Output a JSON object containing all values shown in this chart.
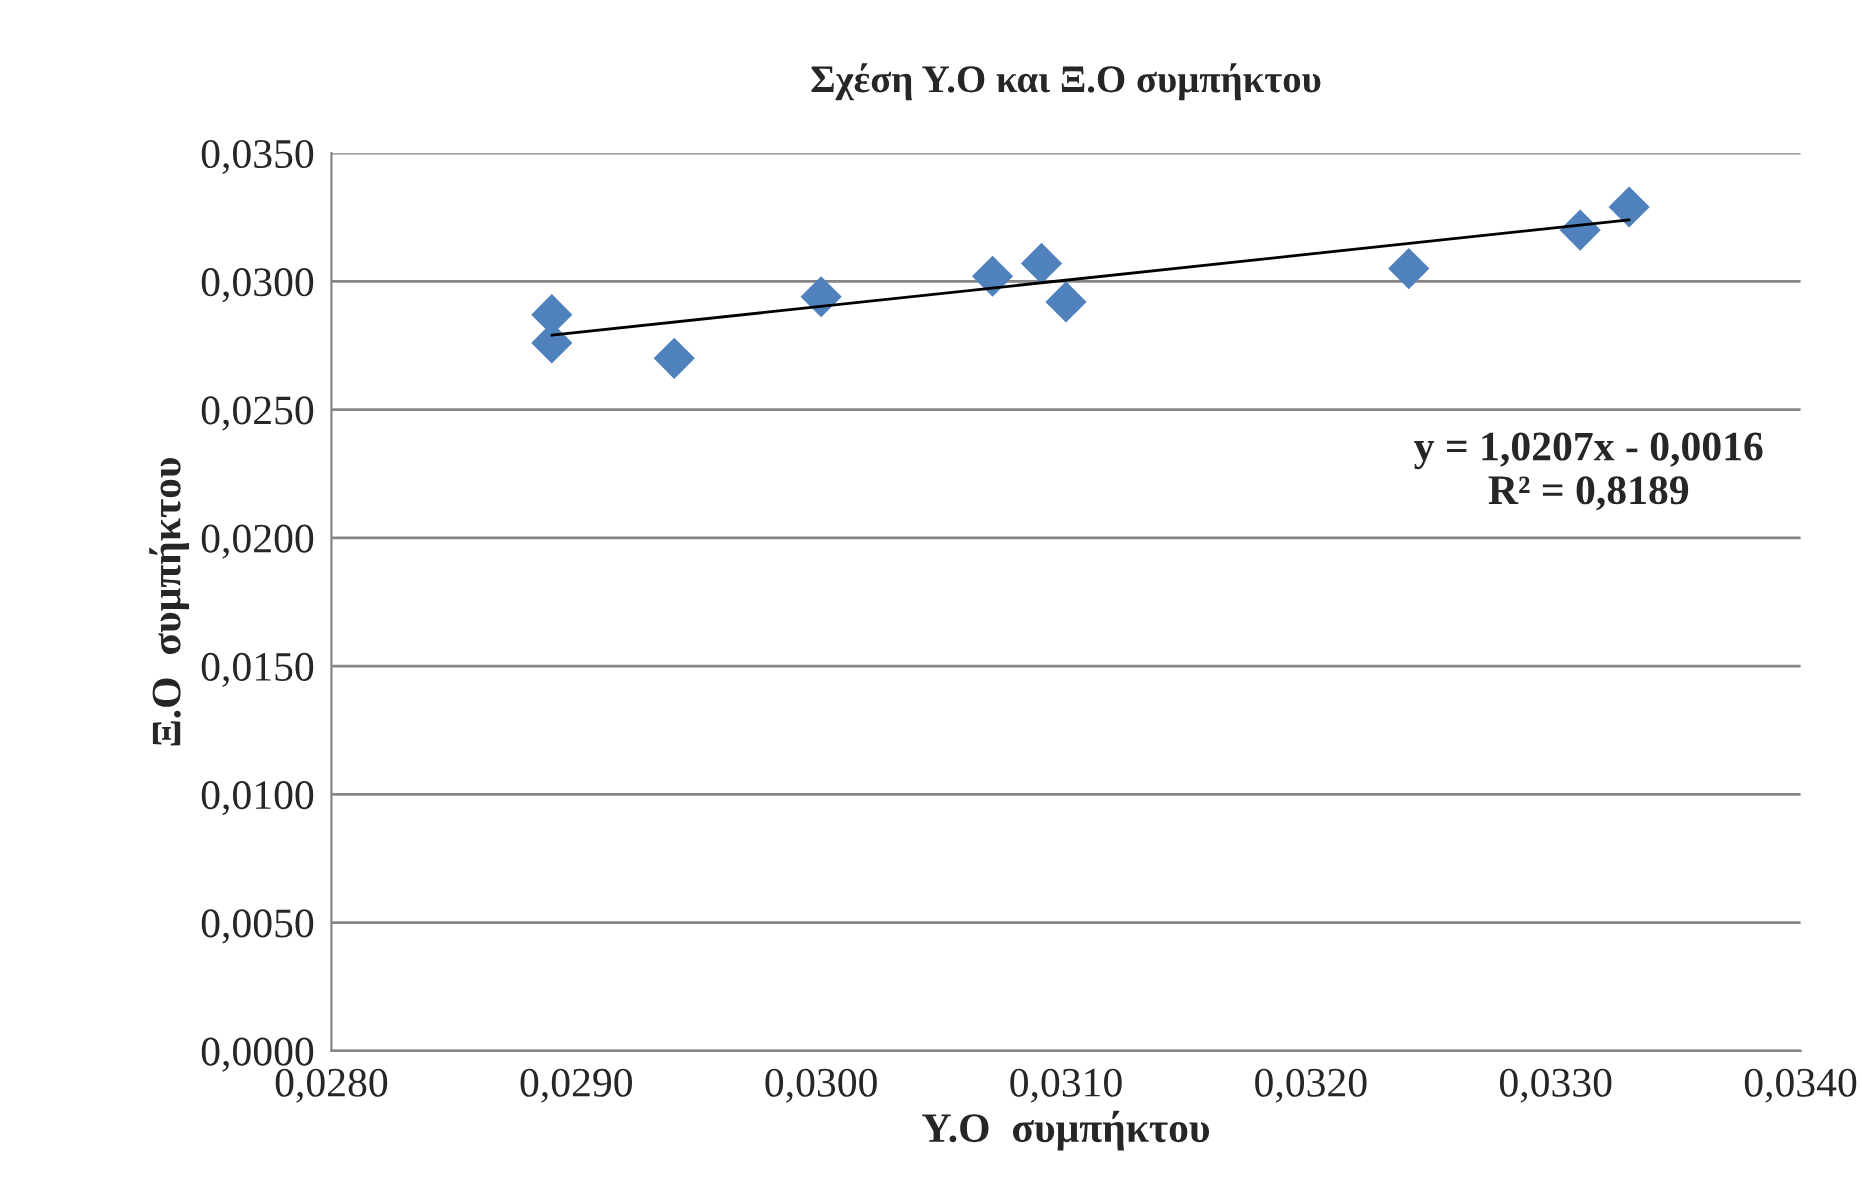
{
  "chart_data": {
    "type": "scatter",
    "title": "Σχέση Υ.Ο και Ξ.Ο συμπήκτου",
    "xlabel": "Υ.Ο  συμπήκτου",
    "ylabel": "Ξ.Ο  συμπήκτου",
    "series": [
      {
        "color": "#4f81bd",
        "marker": "diamond",
        "x": [
          0.0289,
          0.0289,
          0.0294,
          0.03,
          0.0307,
          0.0309,
          0.031,
          0.0324,
          0.0331,
          0.0333
        ],
        "values": [
          0.0287,
          0.0276,
          0.027,
          0.0294,
          0.0302,
          0.0307,
          0.0292,
          0.0305,
          0.032,
          0.0329
        ]
      },
      {
        "type": "line",
        "color": "#000000",
        "marker": "none",
        "line_style": "solid",
        "x": [
          0.0289,
          0.0333
        ],
        "values": [
          0.0279,
          0.0324
        ]
      }
    ],
    "annotations": [
      "y = 1,0207x - 0,0016\nR² = 0,8189"
    ],
    "xlim": [
      0.028,
      0.034
    ],
    "xticks": [
      {
        "value": 0.028,
        "label": "0,0280"
      },
      {
        "value": 0.029,
        "label": "0,0290"
      },
      {
        "value": 0.03,
        "label": "0,0300"
      },
      {
        "value": 0.031,
        "label": "0,0310"
      },
      {
        "value": 0.032,
        "label": "0,0320"
      },
      {
        "value": 0.033,
        "label": "0,0330"
      },
      {
        "value": 0.034,
        "label": "0,0340"
      }
    ],
    "ylim": [
      0.0,
      0.035
    ],
    "yticks": [
      {
        "value": 0.0,
        "label": "0,0000"
      },
      {
        "value": 0.005,
        "label": "0,0050"
      },
      {
        "value": 0.01,
        "label": "0,0100"
      },
      {
        "value": 0.015,
        "label": "0,0150"
      },
      {
        "value": 0.02,
        "label": "0,0200"
      },
      {
        "value": 0.025,
        "label": "0,0250"
      },
      {
        "value": 0.03,
        "label": "0,0300"
      },
      {
        "value": 0.035,
        "label": "0,0350"
      }
    ],
    "grid": "y"
  }
}
